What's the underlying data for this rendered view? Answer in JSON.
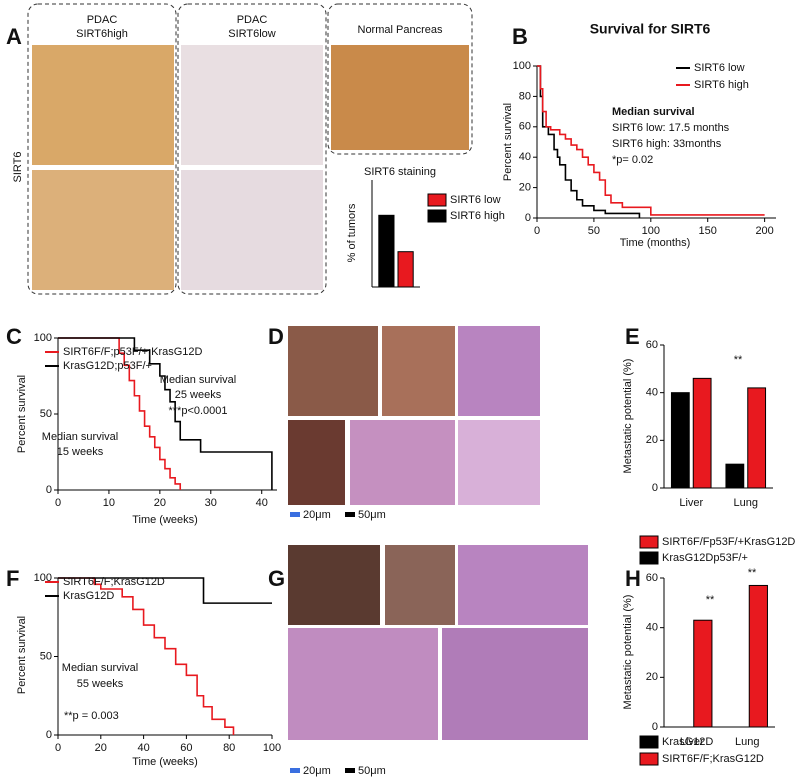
{
  "panels": {
    "A": {
      "label": "A",
      "headers": [
        [
          "PDAC",
          "SIRT6high"
        ],
        [
          "PDAC",
          "SIRT6low"
        ],
        [
          "Normal Pancreas"
        ]
      ],
      "row_label": "SIRT6"
    },
    "D": {
      "label": "D",
      "scale_bars": [
        "20μm",
        "50μm"
      ]
    },
    "G": {
      "label": "G",
      "scale_bars": [
        "20μm",
        "50μm"
      ]
    }
  },
  "chart_data": [
    {
      "type": "bar",
      "title": "SIRT6 staining",
      "y_label": "% of tumors",
      "ylim": [
        0,
        100
      ],
      "series": [
        {
          "name": "SIRT6 low",
          "color": "#e8191f",
          "values": [
            33
          ]
        },
        {
          "name": "SIRT6 high",
          "color": "#000000",
          "values": [
            67
          ]
        }
      ]
    },
    {
      "type": "line",
      "step": true,
      "label": "B",
      "title": "Survival for SIRT6",
      "x_label": "Time (months)",
      "y_label": "Percent survival",
      "xlim": [
        0,
        210
      ],
      "xticks": [
        0,
        50,
        100,
        150,
        200
      ],
      "ylim": [
        0,
        100
      ],
      "yticks": [
        0,
        20,
        40,
        60,
        80,
        100
      ],
      "annotations": [
        "Median survival",
        "SIRT6 low: 17.5 months",
        "SIRT6 high: 33months",
        "*p= 0.02"
      ],
      "series": [
        {
          "name": "SIRT6 low",
          "color": "#000000",
          "x": [
            0,
            3,
            5,
            10,
            15,
            18,
            20,
            25,
            30,
            35,
            40,
            50,
            60,
            90
          ],
          "values": [
            100,
            80,
            60,
            55,
            45,
            40,
            35,
            25,
            18,
            12,
            8,
            5,
            3,
            0
          ]
        },
        {
          "name": "SIRT6 high",
          "color": "#e8191f",
          "x": [
            0,
            3,
            5,
            8,
            12,
            20,
            25,
            30,
            35,
            40,
            45,
            50,
            55,
            60,
            65,
            75,
            100,
            200
          ],
          "values": [
            100,
            85,
            70,
            60,
            58,
            55,
            52,
            48,
            45,
            40,
            35,
            30,
            25,
            15,
            10,
            7,
            2,
            2
          ]
        }
      ]
    },
    {
      "type": "line",
      "step": true,
      "label": "C",
      "x_label": "Time (weeks)",
      "y_label": "Percent survival",
      "xlim": [
        0,
        43
      ],
      "xticks": [
        0,
        10,
        20,
        30,
        40
      ],
      "ylim": [
        0,
        100
      ],
      "yticks": [
        0,
        50,
        100
      ],
      "annotations": [
        "Median survival",
        "25 weeks",
        "***p<0.0001",
        "Median survival",
        "15 weeks"
      ],
      "series": [
        {
          "name": "SIRT6F/F;p53F/+;KrasG12D",
          "color": "#e8191f",
          "x": [
            0,
            12,
            13,
            14,
            15,
            16,
            17,
            18,
            19,
            20,
            21,
            22,
            23,
            24
          ],
          "values": [
            100,
            90,
            82,
            72,
            62,
            52,
            42,
            35,
            28,
            20,
            14,
            8,
            4,
            0
          ]
        },
        {
          "name": "KrasG12D;p53F/+",
          "color": "#000000",
          "x": [
            0,
            15,
            18,
            20,
            21,
            22,
            23,
            24,
            28,
            42
          ],
          "values": [
            100,
            92,
            83,
            75,
            66,
            58,
            45,
            33,
            25,
            0
          ]
        }
      ]
    },
    {
      "type": "bar",
      "label": "E",
      "y_label": "Metastatic potential (%)",
      "categories": [
        "Liver",
        "Lung"
      ],
      "ylim": [
        0,
        60
      ],
      "yticks": [
        0,
        20,
        40,
        60
      ],
      "annotations": [
        "**"
      ],
      "series": [
        {
          "name": "SIRT6F/Fp53F/+KrasG12D",
          "color": "#e8191f",
          "values": [
            46,
            42
          ]
        },
        {
          "name": "KrasG12Dp53F/+",
          "color": "#000000",
          "values": [
            40,
            10
          ]
        }
      ]
    },
    {
      "type": "line",
      "step": true,
      "label": "F",
      "x_label": "Time (weeks)",
      "y_label": "Percent survival",
      "xlim": [
        0,
        100
      ],
      "xticks": [
        0,
        20,
        40,
        60,
        80,
        100
      ],
      "ylim": [
        0,
        100
      ],
      "yticks": [
        0,
        50,
        100
      ],
      "annotations": [
        "Median survival",
        "55 weeks",
        "**p = 0.003"
      ],
      "series": [
        {
          "name": "SIRT6F/F;KrasG12D",
          "color": "#e8191f",
          "x": [
            0,
            17,
            20,
            30,
            35,
            40,
            45,
            50,
            55,
            60,
            65,
            68,
            72,
            78,
            82
          ],
          "values": [
            100,
            96,
            93,
            88,
            80,
            70,
            62,
            55,
            45,
            38,
            25,
            18,
            10,
            5,
            0
          ]
        },
        {
          "name": "KrasG12D",
          "color": "#000000",
          "x": [
            0,
            68,
            100
          ],
          "values": [
            100,
            84,
            84
          ]
        }
      ]
    },
    {
      "type": "bar",
      "label": "H",
      "y_label": "Metastatic potential (%)",
      "categories": [
        "Liver",
        "Lung"
      ],
      "ylim": [
        0,
        60
      ],
      "yticks": [
        0,
        20,
        40,
        60
      ],
      "annotations": [
        "**",
        "**"
      ],
      "series": [
        {
          "name": "KrasG12D",
          "color": "#000000",
          "values": [
            0,
            0
          ]
        },
        {
          "name": "SIRT6F/F;KrasG12D",
          "color": "#e8191f",
          "values": [
            43,
            57
          ]
        }
      ]
    }
  ]
}
